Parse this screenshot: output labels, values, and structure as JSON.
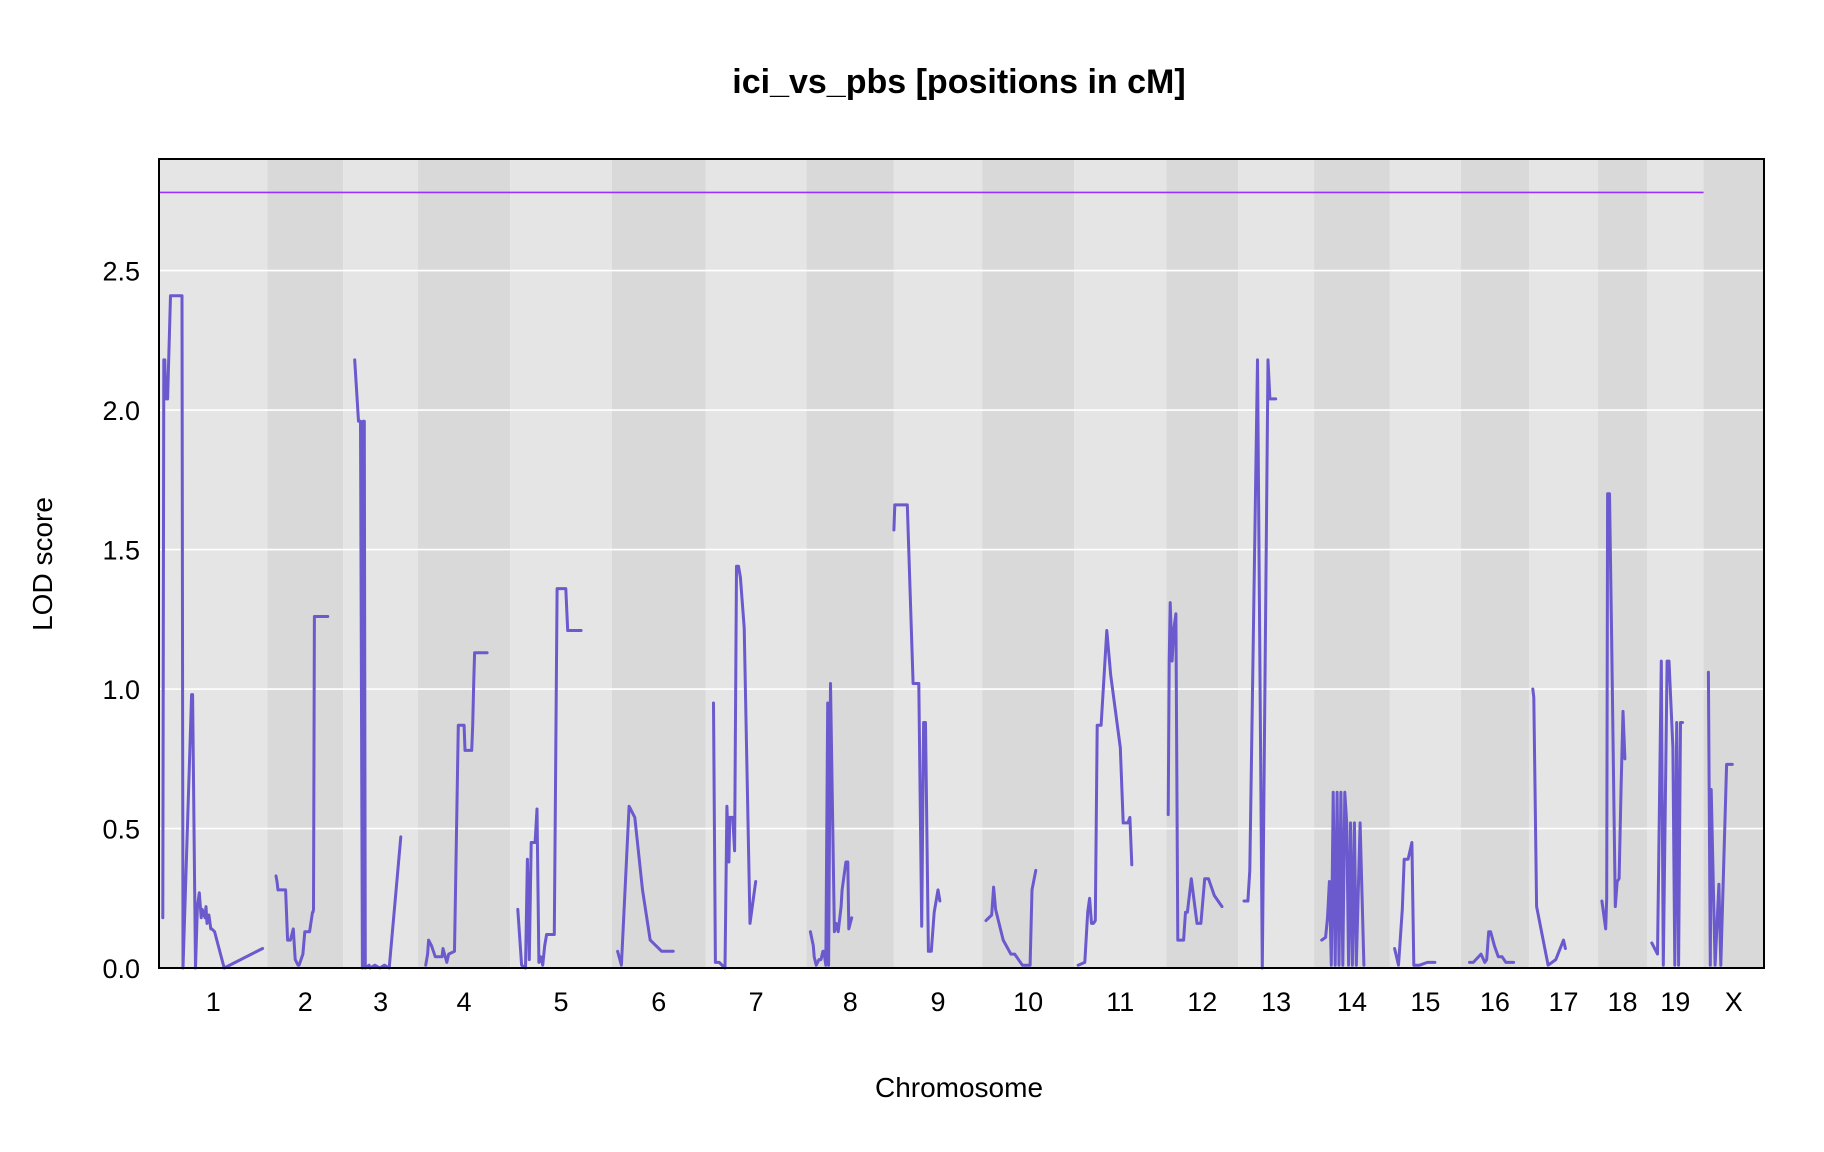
{
  "colors": {
    "band_light": "#e5e5e5",
    "band_dark": "#d9d9d9",
    "gridline": "#ffffff",
    "lod_line": "#6a5acd",
    "threshold": "#9b30ff",
    "frame": "#000000"
  },
  "chart_data": {
    "type": "line",
    "title": "ici_vs_pbs [positions in cM]",
    "xlabel": "Chromosome",
    "ylabel": "LOD score",
    "ylim": [
      0,
      2.9
    ],
    "yticks": [
      "0.0",
      "0.5",
      "1.0",
      "1.5",
      "2.0",
      "2.5"
    ],
    "grid": true,
    "threshold": 2.78,
    "chromosomes": [
      {
        "label": "1",
        "start": 0,
        "end": 113
      },
      {
        "label": "2",
        "start": 113,
        "end": 192
      },
      {
        "label": "3",
        "start": 192,
        "end": 270
      },
      {
        "label": "4",
        "start": 270,
        "end": 366
      },
      {
        "label": "5",
        "start": 366,
        "end": 472
      },
      {
        "label": "6",
        "start": 472,
        "end": 570
      },
      {
        "label": "7",
        "start": 570,
        "end": 675
      },
      {
        "label": "8",
        "start": 675,
        "end": 766
      },
      {
        "label": "9",
        "start": 766,
        "end": 858
      },
      {
        "label": "10",
        "start": 858,
        "end": 954
      },
      {
        "label": "11",
        "start": 954,
        "end": 1050
      },
      {
        "label": "12",
        "start": 1050,
        "end": 1125
      },
      {
        "label": "13",
        "start": 1125,
        "end": 1204
      },
      {
        "label": "14",
        "start": 1204,
        "end": 1283
      },
      {
        "label": "15",
        "start": 1283,
        "end": 1357
      },
      {
        "label": "16",
        "start": 1357,
        "end": 1428
      },
      {
        "label": "17",
        "start": 1428,
        "end": 1500
      },
      {
        "label": "18",
        "start": 1500,
        "end": 1551
      },
      {
        "label": "19",
        "start": 1551,
        "end": 1610
      },
      {
        "label": "X",
        "start": 1610,
        "end": 1673
      }
    ],
    "series": [
      {
        "chromosome": "1",
        "x": [
          4,
          5,
          6,
          7,
          9,
          12,
          12.5,
          24,
          25,
          34,
          35,
          38,
          40,
          42,
          44,
          45,
          48,
          49,
          50,
          52,
          54,
          55,
          58,
          68,
          108
        ],
        "y": [
          0.18,
          2.18,
          2.18,
          2.04,
          2.04,
          2.41,
          2.41,
          2.41,
          0,
          0.98,
          0.98,
          0,
          0.22,
          0.27,
          0.18,
          0.21,
          0.18,
          0.22,
          0.16,
          0.19,
          0.14,
          0.14,
          0.13,
          0,
          0.07
        ]
      },
      {
        "chromosome": "2",
        "x": [
          122,
          123,
          124,
          126,
          132,
          134,
          137,
          140,
          142,
          145,
          146,
          150,
          152,
          157,
          160,
          160.5,
          161,
          162,
          172,
          175,
          176
        ],
        "y": [
          0.33,
          0.31,
          0.28,
          0.28,
          0.28,
          0.1,
          0.1,
          0.14,
          0.03,
          0.01,
          0.01,
          0.05,
          0.13,
          0.13,
          0.2,
          0.2,
          0.21,
          1.26,
          1.26,
          1.26,
          1.26
        ]
      },
      {
        "chromosome": "3",
        "x": [
          204,
          208,
          210,
          212,
          213,
          214,
          215,
          219,
          220,
          225,
          230,
          235,
          240,
          252
        ],
        "y": [
          2.18,
          1.96,
          1.96,
          0,
          1.96,
          1.96,
          0,
          0.01,
          0,
          0.01,
          0,
          0.01,
          0,
          0.47
        ]
      },
      {
        "chromosome": "4",
        "x": [
          278,
          280,
          281,
          284,
          288,
          295,
          296,
          300,
          302,
          308,
          312,
          313,
          318,
          319,
          320,
          326,
          327,
          328,
          329,
          336,
          342
        ],
        "y": [
          0.01,
          0.05,
          0.1,
          0.08,
          0.04,
          0.04,
          0.07,
          0.02,
          0.05,
          0.06,
          0.87,
          0.87,
          0.87,
          0.78,
          0.78,
          0.78,
          0.87,
          1.02,
          1.13,
          1.13,
          1.13
        ]
      },
      {
        "chromosome": "5",
        "x": [
          374,
          378,
          382,
          384,
          386,
          388,
          392,
          394,
          396,
          398,
          400,
          402,
          404,
          408,
          412,
          415,
          424,
          426,
          431,
          440
        ],
        "y": [
          0.21,
          0.01,
          0,
          0.39,
          0.03,
          0.45,
          0.45,
          0.57,
          0.02,
          0.04,
          0.01,
          0.08,
          0.12,
          0.12,
          0.12,
          1.36,
          1.36,
          1.21,
          1.21,
          1.21
        ]
      },
      {
        "chromosome": "6",
        "x": [
          478,
          482,
          490,
          496,
          504,
          512,
          524,
          536
        ],
        "y": [
          0.06,
          0.01,
          0.58,
          0.54,
          0.28,
          0.1,
          0.06,
          0.06
        ]
      },
      {
        "chromosome": "7",
        "x": [
          578,
          580,
          584,
          590,
          592,
          594,
          595,
          598,
          600,
          602,
          604,
          606,
          610,
          616,
          622
        ],
        "y": [
          0.95,
          0.02,
          0.02,
          0,
          0.58,
          0.38,
          0.54,
          0.54,
          0.42,
          1.44,
          1.44,
          1.4,
          1.22,
          0.16,
          0.31
        ]
      },
      {
        "chromosome": "8",
        "x": [
          679,
          682,
          683,
          685,
          688,
          690,
          692,
          693,
          695,
          697,
          698,
          700,
          704,
          706,
          708,
          711,
          712,
          716,
          718,
          719,
          722
        ],
        "y": [
          0.13,
          0.08,
          0.04,
          0.01,
          0.03,
          0.03,
          0.06,
          0.06,
          0.01,
          0.95,
          0.01,
          1.02,
          0.13,
          0.16,
          0.13,
          0.22,
          0.28,
          0.38,
          0.38,
          0.14,
          0.18
        ]
      },
      {
        "chromosome": "9",
        "x": [
          766,
          767,
          768,
          772,
          780,
          786,
          788,
          792,
          795,
          797,
          799,
          802,
          805,
          808,
          812,
          814
        ],
        "y": [
          1.57,
          1.66,
          1.66,
          1.66,
          1.66,
          1.02,
          1.02,
          1.02,
          0.15,
          0.88,
          0.88,
          0.06,
          0.06,
          0.2,
          0.28,
          0.24
        ]
      },
      {
        "chromosome": "10",
        "x": [
          862,
          868,
          870,
          872,
          880,
          888,
          892,
          900,
          908,
          910,
          914
        ],
        "y": [
          0.17,
          0.19,
          0.29,
          0.21,
          0.1,
          0.05,
          0.05,
          0.01,
          0.01,
          0.28,
          0.35
        ]
      },
      {
        "chromosome": "11",
        "x": [
          958,
          965,
          968,
          970,
          972,
          974,
          976,
          978,
          980,
          982,
          988,
          992,
          1002,
          1005,
          1010,
          1012,
          1014
        ],
        "y": [
          0.01,
          0.02,
          0.2,
          0.25,
          0.16,
          0.16,
          0.17,
          0.87,
          0.87,
          0.87,
          1.21,
          1.05,
          0.79,
          0.52,
          0.52,
          0.54,
          0.37
        ]
      },
      {
        "chromosome": "12",
        "x": [
          1052,
          1053,
          1054,
          1056,
          1058,
          1060,
          1062,
          1066,
          1068,
          1070,
          1072,
          1076,
          1082,
          1086,
          1090,
          1094,
          1100,
          1108
        ],
        "y": [
          0.55,
          1.1,
          1.31,
          1.1,
          1.22,
          1.27,
          0.1,
          0.1,
          0.1,
          0.2,
          0.2,
          0.32,
          0.16,
          0.16,
          0.32,
          0.32,
          0.26,
          0.22
        ]
      },
      {
        "chromosome": "13",
        "x": [
          1131,
          1135,
          1137,
          1145,
          1150,
          1156,
          1158,
          1160,
          1164
        ],
        "y": [
          0.24,
          0.24,
          0.35,
          2.18,
          0,
          2.18,
          2.04,
          2.04,
          2.04
        ]
      },
      {
        "chromosome": "14",
        "x": [
          1212,
          1216,
          1218,
          1220,
          1222,
          1224,
          1226,
          1228,
          1230,
          1232,
          1234,
          1236,
          1238,
          1240,
          1242,
          1244,
          1246,
          1248,
          1252,
          1256
        ],
        "y": [
          0.1,
          0.11,
          0.18,
          0.31,
          0.01,
          0.63,
          0.01,
          0.63,
          0.01,
          0.63,
          0.01,
          0.63,
          0.52,
          0.01,
          0.52,
          0.01,
          0.52,
          0.01,
          0.52,
          0.01
        ]
      },
      {
        "chromosome": "15",
        "x": [
          1288,
          1292,
          1296,
          1298,
          1302,
          1306,
          1308,
          1310,
          1314,
          1322,
          1330
        ],
        "y": [
          0.07,
          0.01,
          0.21,
          0.39,
          0.39,
          0.45,
          0.01,
          0.01,
          0.01,
          0.02,
          0.02
        ]
      },
      {
        "chromosome": "16",
        "x": [
          1366,
          1370,
          1378,
          1382,
          1384,
          1386,
          1388,
          1392,
          1396,
          1400,
          1404,
          1412
        ],
        "y": [
          0.02,
          0.02,
          0.05,
          0.02,
          0.03,
          0.13,
          0.13,
          0.08,
          0.04,
          0.04,
          0.02,
          0.02
        ]
      },
      {
        "chromosome": "17",
        "x": [
          1432,
          1433,
          1436,
          1448,
          1456,
          1464,
          1466
        ],
        "y": [
          1.0,
          0.97,
          0.22,
          0.01,
          0.03,
          0.1,
          0.07
        ]
      },
      {
        "chromosome": "18",
        "x": [
          1504,
          1508,
          1509,
          1510,
          1512,
          1514,
          1518,
          1520,
          1522,
          1524,
          1526,
          1528
        ],
        "y": [
          0.24,
          0.14,
          0.25,
          1.7,
          1.7,
          1.22,
          0.22,
          0.31,
          0.32,
          0.65,
          0.92,
          0.75
        ]
      },
      {
        "chromosome": "19",
        "x": [
          1556,
          1562,
          1566,
          1568,
          1572,
          1574,
          1578,
          1580,
          1582,
          1584,
          1586,
          1588
        ],
        "y": [
          0.09,
          0.05,
          1.1,
          0.01,
          1.1,
          1.1,
          0.79,
          0.01,
          0.88,
          0.01,
          0.88,
          0.88
        ]
      },
      {
        "chromosome": "X",
        "x": [
          1615,
          1617,
          1618,
          1622,
          1626,
          1628,
          1634,
          1640
        ],
        "y": [
          1.06,
          0.01,
          0.64,
          0.01,
          0.3,
          0.01,
          0.73,
          0.73
        ]
      }
    ]
  }
}
